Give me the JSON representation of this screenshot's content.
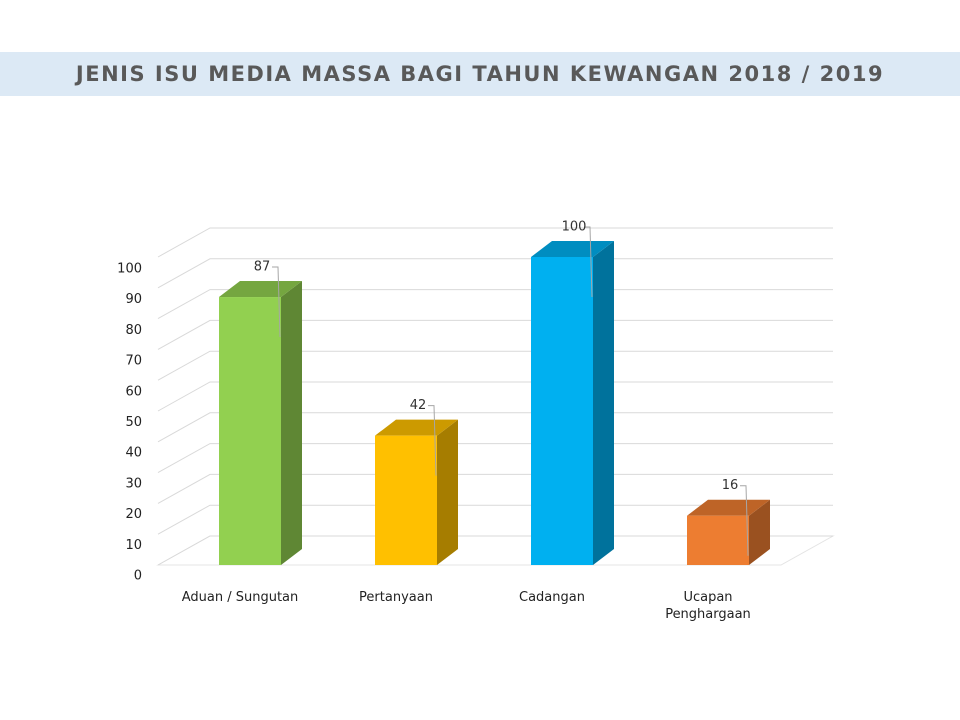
{
  "chart_data": {
    "type": "bar3d",
    "title": "JENIS ISU MEDIA MASSA BAGI TAHUN KEWANGAN 2018 / 2019",
    "categories": [
      "Aduan / Sungutan",
      "Pertanyaan",
      "Cadangan",
      "Ucapan Penghargaan"
    ],
    "values": [
      87,
      42,
      100,
      16
    ],
    "colors": [
      "#92d050",
      "#ffc000",
      "#00b0f0",
      "#ed7d31"
    ],
    "ylim": [
      0,
      100
    ],
    "yticks": [
      0,
      10,
      20,
      30,
      40,
      50,
      60,
      70,
      80,
      90,
      100
    ],
    "grid": true
  }
}
